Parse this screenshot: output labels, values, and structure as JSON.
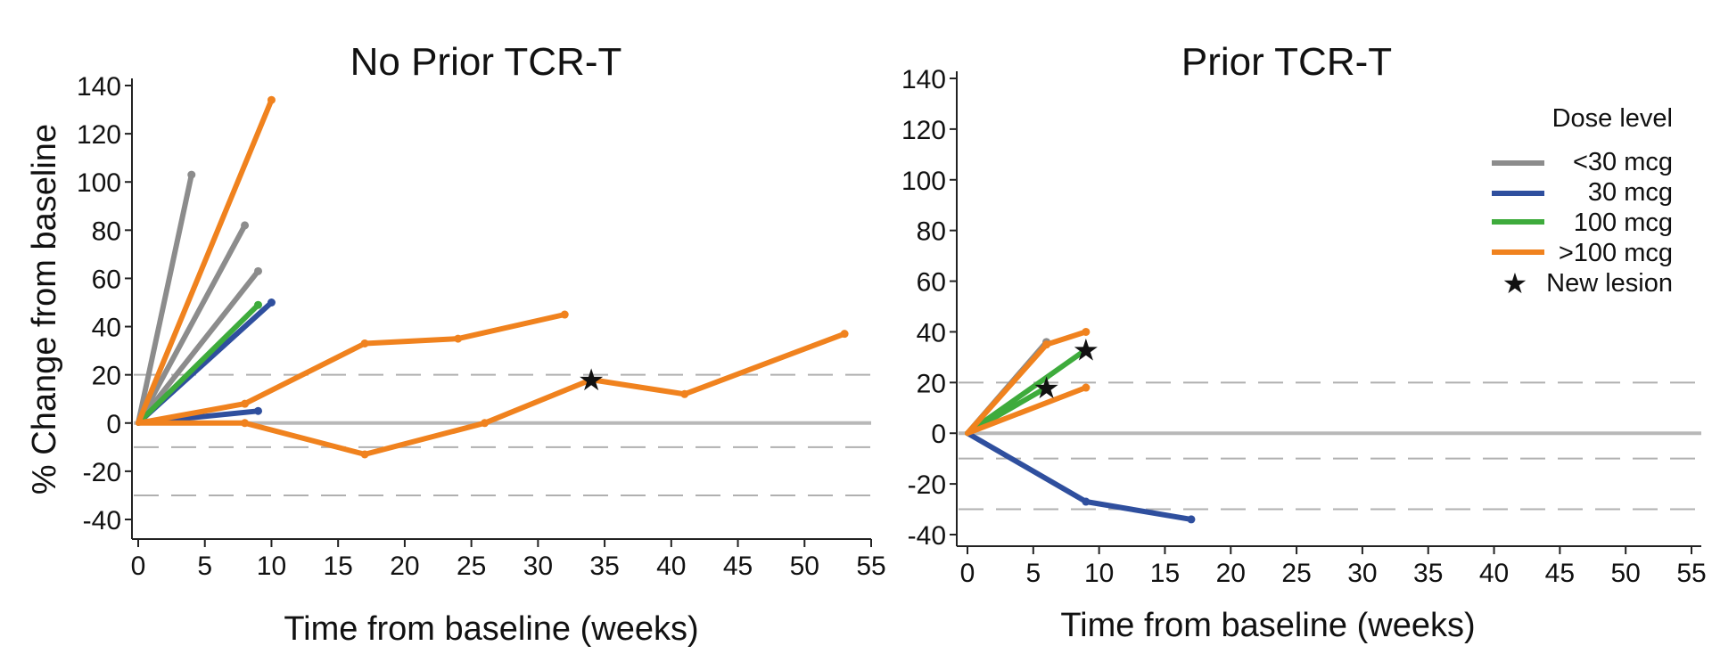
{
  "chart_data": [
    {
      "type": "line",
      "title": "No Prior TCR-T",
      "xlabel": "Time from baseline (weeks)",
      "ylabel": "% Change from baseline",
      "xlim": [
        0,
        55
      ],
      "ylim": [
        -40,
        140
      ],
      "xticks": [
        "0",
        "5",
        "10",
        "15",
        "20",
        "25",
        "30",
        "35",
        "40",
        "45",
        "50",
        "55"
      ],
      "yticks": [
        "140",
        "120",
        "100",
        "80",
        "60",
        "40",
        "20",
        "0",
        "-20",
        "-40"
      ],
      "reference_lines": [
        {
          "y": 0,
          "style": "solid"
        },
        {
          "y": 20,
          "style": "dashed"
        },
        {
          "y": -10,
          "style": "dashed"
        },
        {
          "y": -30,
          "style": "dashed"
        }
      ],
      "series": [
        {
          "dose": "<30 mcg",
          "points": [
            [
              0,
              0
            ],
            [
              4,
              103
            ]
          ]
        },
        {
          "dose": "<30 mcg",
          "points": [
            [
              0,
              0
            ],
            [
              8,
              82
            ]
          ]
        },
        {
          "dose": "<30 mcg",
          "points": [
            [
              0,
              0
            ],
            [
              9,
              63
            ]
          ]
        },
        {
          "dose": "30 mcg",
          "points": [
            [
              0,
              0
            ],
            [
              10,
              50
            ]
          ]
        },
        {
          "dose": "30 mcg",
          "points": [
            [
              0,
              0
            ],
            [
              9,
              5
            ]
          ]
        },
        {
          "dose": "100 mcg",
          "points": [
            [
              0,
              0
            ],
            [
              9,
              49
            ]
          ]
        },
        {
          "dose": ">100 mcg",
          "points": [
            [
              0,
              0
            ],
            [
              10,
              134
            ]
          ]
        },
        {
          "dose": ">100 mcg",
          "points": [
            [
              0,
              0
            ],
            [
              8,
              8
            ],
            [
              17,
              33
            ],
            [
              24,
              35
            ],
            [
              32,
              45
            ]
          ]
        },
        {
          "dose": ">100 mcg",
          "points": [
            [
              0,
              0
            ],
            [
              8,
              0
            ],
            [
              17,
              -13
            ],
            [
              26,
              0
            ],
            [
              34,
              18
            ],
            [
              41,
              12
            ],
            [
              53,
              37
            ]
          ],
          "new_lesion_at": [
            34,
            18
          ]
        }
      ]
    },
    {
      "type": "line",
      "title": "Prior TCR-T",
      "xlabel": "Time from baseline (weeks)",
      "ylabel": "",
      "xlim": [
        0,
        55
      ],
      "ylim": [
        -40,
        140
      ],
      "xticks": [
        "0",
        "5",
        "10",
        "15",
        "20",
        "25",
        "30",
        "35",
        "40",
        "45",
        "50",
        "55"
      ],
      "yticks": [
        "140",
        "120",
        "100",
        "80",
        "60",
        "40",
        "20",
        "0",
        "-20",
        "-40"
      ],
      "reference_lines": [
        {
          "y": 0,
          "style": "solid"
        },
        {
          "y": 20,
          "style": "dashed"
        },
        {
          "y": -10,
          "style": "dashed"
        },
        {
          "y": -30,
          "style": "dashed"
        }
      ],
      "series": [
        {
          "dose": "<30 mcg",
          "points": [
            [
              0,
              0
            ],
            [
              6,
              36
            ]
          ]
        },
        {
          "dose": "30 mcg",
          "points": [
            [
              0,
              0
            ],
            [
              9,
              -27
            ],
            [
              17,
              -34
            ]
          ]
        },
        {
          "dose": "100 mcg",
          "points": [
            [
              0,
              0
            ],
            [
              9,
              33
            ]
          ],
          "new_lesion_at": [
            9,
            33
          ]
        },
        {
          "dose": "100 mcg",
          "points": [
            [
              0,
              0
            ],
            [
              6,
              18
            ]
          ],
          "new_lesion_at": [
            6,
            18
          ]
        },
        {
          "dose": ">100 mcg",
          "points": [
            [
              0,
              0
            ],
            [
              6,
              35
            ],
            [
              9,
              40
            ]
          ]
        },
        {
          "dose": ">100 mcg",
          "points": [
            [
              0,
              0
            ],
            [
              9,
              18
            ]
          ]
        }
      ]
    }
  ],
  "legend": {
    "title": "Dose level",
    "items": [
      {
        "label": "<30 mcg",
        "color": "#8c8c8c"
      },
      {
        "label": "30 mcg",
        "color": "#2f4f9e"
      },
      {
        "label": "100 mcg",
        "color": "#3eab3c"
      },
      {
        "label": ">100 mcg",
        "color": "#f0821e"
      }
    ],
    "marker_label": "New lesion"
  },
  "colors": {
    "<30 mcg": "#8c8c8c",
    "30 mcg": "#2f4f9e",
    "100 mcg": "#3eab3c",
    ">100 mcg": "#f0821e",
    "zero_line": "#b8b8b8",
    "dashed_line": "#b0b0b0",
    "axis": "#222222"
  }
}
